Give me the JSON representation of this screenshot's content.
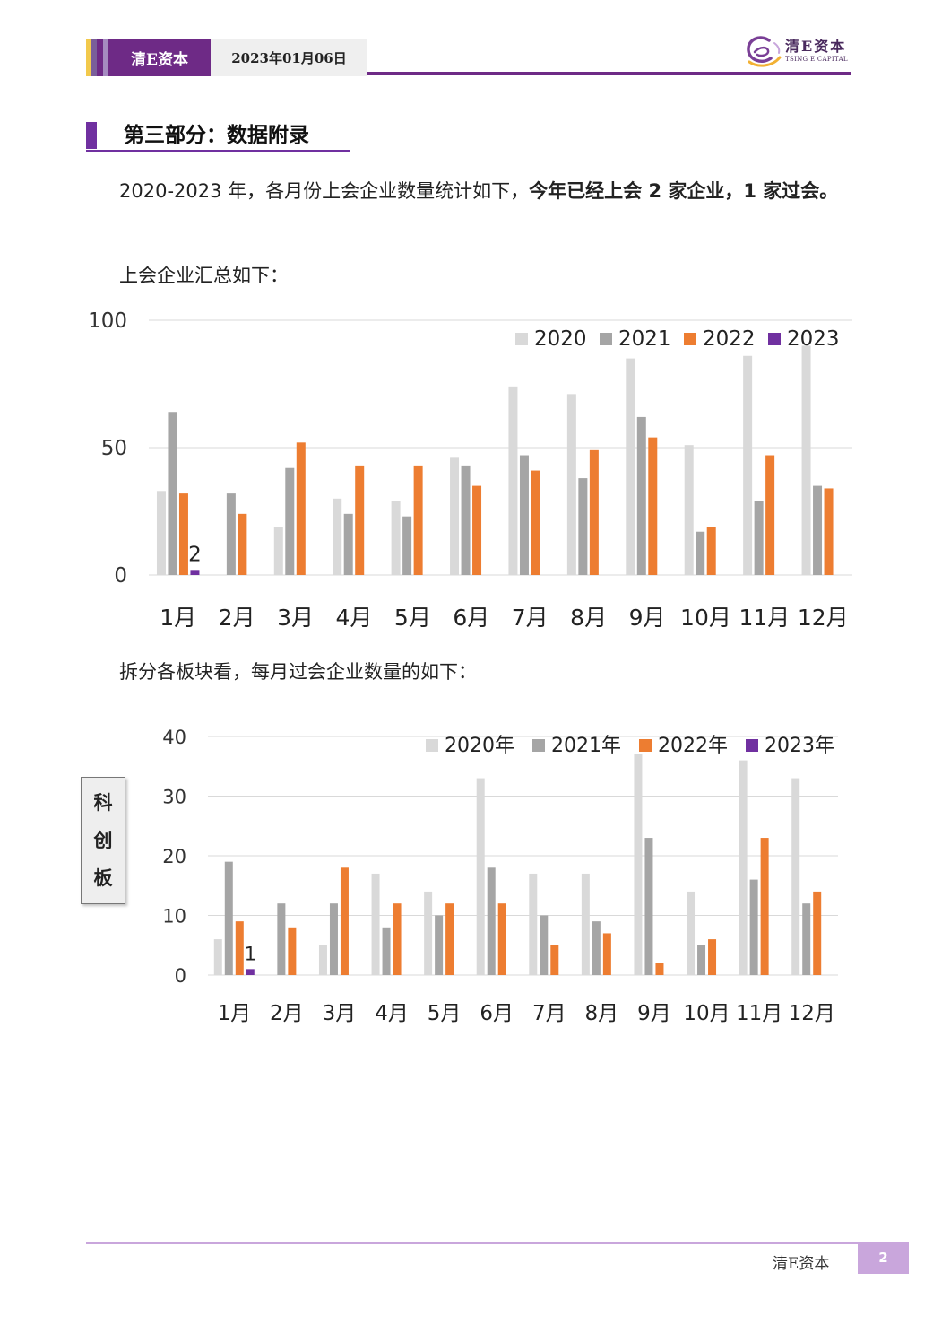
{
  "header": {
    "brand": "清E资本",
    "date": "2023年01月06日",
    "logo_cn": "清E资本",
    "logo_en": "TSING E CAPITAL",
    "stripe_colors": [
      "#f2c94c",
      "#7a5e9a",
      "#6e2a86",
      "#a58bc0"
    ]
  },
  "section": {
    "title": "第三部分：数据附录"
  },
  "intro": {
    "text": "2020-2023 年，各月份上会企业数量统计如下，",
    "bold": "今年已经上会 2 家企业，1 家过会。"
  },
  "caption1": "上会企业汇总如下：",
  "caption2": "拆分各板块看，每月过会企业数量的如下：",
  "side_label": [
    "科",
    "创",
    "板"
  ],
  "footer": {
    "brand": "清E资本",
    "page": "2"
  },
  "colors": {
    "2020": "#d9d9d9",
    "2021": "#a5a5a5",
    "2022": "#ed7d31",
    "2023": "#7030a0"
  },
  "chart_data": [
    {
      "type": "bar",
      "categories": [
        "1月",
        "2月",
        "3月",
        "4月",
        "5月",
        "6月",
        "7月",
        "8月",
        "9月",
        "10月",
        "11月",
        "12月"
      ],
      "ylim": [
        0,
        100
      ],
      "yticks": [
        0,
        50,
        100
      ],
      "grid": true,
      "legend": "top-right",
      "series": [
        {
          "name": "2020",
          "values": [
            33,
            0,
            19,
            30,
            29,
            46,
            74,
            71,
            85,
            51,
            86,
            90
          ]
        },
        {
          "name": "2021",
          "values": [
            64,
            32,
            42,
            24,
            23,
            43,
            47,
            38,
            62,
            17,
            29,
            35
          ]
        },
        {
          "name": "2022",
          "values": [
            32,
            24,
            52,
            43,
            43,
            35,
            41,
            49,
            54,
            19,
            47,
            34
          ]
        },
        {
          "name": "2023",
          "values": [
            2,
            null,
            null,
            null,
            null,
            null,
            null,
            null,
            null,
            null,
            null,
            null
          ]
        }
      ],
      "annotations": [
        {
          "category": "1月",
          "series": "2023",
          "label": "2"
        }
      ]
    },
    {
      "type": "bar",
      "categories": [
        "1月",
        "2月",
        "3月",
        "4月",
        "5月",
        "6月",
        "7月",
        "8月",
        "9月",
        "10月",
        "11月",
        "12月"
      ],
      "ylim": [
        0,
        40
      ],
      "yticks": [
        0,
        10,
        20,
        30,
        40
      ],
      "grid": true,
      "legend": "top-right",
      "series": [
        {
          "name": "2020年",
          "values": [
            6,
            0,
            5,
            17,
            14,
            33,
            17,
            17,
            37,
            14,
            36,
            33
          ]
        },
        {
          "name": "2021年",
          "values": [
            19,
            12,
            12,
            8,
            10,
            18,
            10,
            9,
            23,
            5,
            16,
            12
          ]
        },
        {
          "name": "2022年",
          "values": [
            9,
            8,
            18,
            12,
            12,
            12,
            5,
            7,
            2,
            6,
            23,
            14
          ]
        },
        {
          "name": "2023年",
          "values": [
            1,
            null,
            null,
            null,
            null,
            null,
            null,
            null,
            null,
            null,
            null,
            null
          ]
        }
      ],
      "annotations": [
        {
          "category": "1月",
          "series": "2023年",
          "label": "1"
        }
      ]
    }
  ]
}
